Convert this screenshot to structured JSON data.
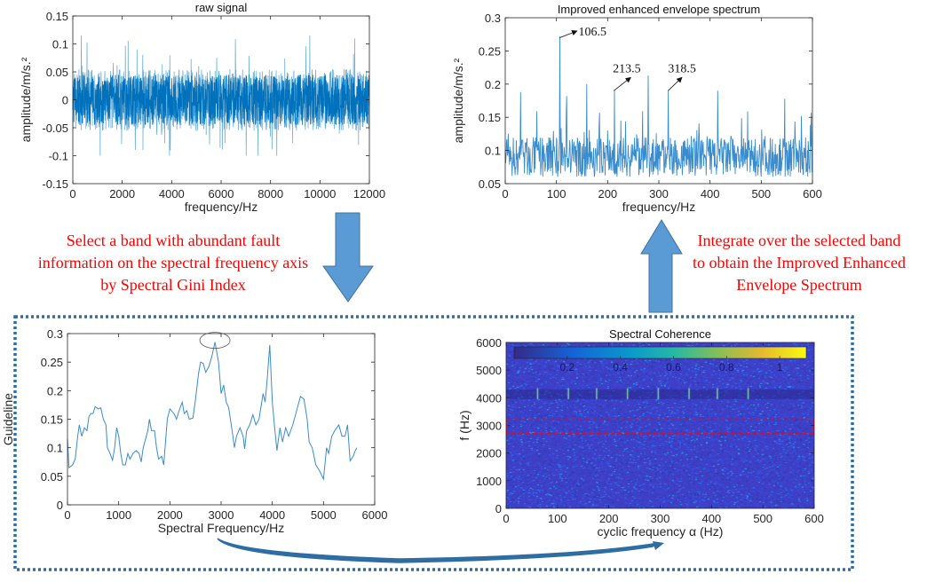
{
  "captions": {
    "left": [
      "Select a band with abundant fault",
      "information on the spectral frequency axis",
      "by Spectral Gini Index"
    ],
    "right": [
      "Integrate over the selected band",
      "to obtain the Improved Enhanced",
      "Envelope Spectrum"
    ]
  },
  "colors": {
    "arrow": "#5b9bd5",
    "box": "#2e6da4",
    "caption": "#ff0000",
    "line": "#0072bd",
    "band": "#ff0000"
  },
  "chart_data": [
    {
      "id": "raw",
      "type": "line",
      "title": "raw signal",
      "xlabel": "frequency/Hz",
      "ylabel": "amplitude/m/s.²",
      "xlim": [
        0,
        12000
      ],
      "ylim": [
        -0.15,
        0.15
      ],
      "xticks": [
        "0",
        "2000",
        "4000",
        "6000",
        "8000",
        "10000",
        "12000"
      ],
      "yticks": [
        "-0.15",
        "-0.1",
        "-0.05",
        "0",
        "0.05",
        "0.1",
        "0.15"
      ],
      "description_values": {
        "typical_amplitude": 0.05,
        "max_amplitude": 0.115,
        "min_amplitude": -0.102
      }
    },
    {
      "id": "env",
      "type": "line",
      "title": "Improved enhanced envelope spectrum",
      "xlabel": "frequency/Hz",
      "ylabel": "amplitude/m/s.²",
      "xlim": [
        0,
        600
      ],
      "ylim": [
        0.05,
        0.3
      ],
      "xticks": [
        "0",
        "100",
        "200",
        "300",
        "400",
        "500",
        "600"
      ],
      "yticks": [
        "0.05",
        "0.1",
        "0.15",
        "0.2",
        "0.25",
        "0.3"
      ],
      "peaks": [
        [
          30,
          0.188
        ],
        [
          106.5,
          0.272
        ],
        [
          120,
          0.182
        ],
        [
          159,
          0.2
        ],
        [
          213.5,
          0.19
        ],
        [
          279,
          0.213
        ],
        [
          318.5,
          0.19
        ],
        [
          415,
          0.19
        ],
        [
          546,
          0.178
        ]
      ],
      "annotations": [
        {
          "x": 106.5,
          "y": 0.272,
          "label": "106.5"
        },
        {
          "x": 213.5,
          "y": 0.19,
          "label": "213.5"
        },
        {
          "x": 318.5,
          "y": 0.19,
          "label": "318.5"
        }
      ]
    },
    {
      "id": "gini",
      "type": "line",
      "title": "",
      "xlabel": "Spectral Frequency/Hz",
      "ylabel": "Guideline",
      "xlim": [
        0,
        6000
      ],
      "ylim": [
        0,
        0.3
      ],
      "xticks": [
        "0",
        "1000",
        "2000",
        "3000",
        "4000",
        "5000",
        "6000"
      ],
      "yticks": [
        "0",
        "0.05",
        "0.1",
        "0.15",
        "0.2",
        "0.25",
        "0.3"
      ],
      "highlight": {
        "x": 2880,
        "y": 0.285
      },
      "points": [
        [
          0,
          0.115
        ],
        [
          30,
          0.065
        ],
        [
          100,
          0.07
        ],
        [
          150,
          0.08
        ],
        [
          200,
          0.12
        ],
        [
          230,
          0.14
        ],
        [
          280,
          0.12
        ],
        [
          330,
          0.135
        ],
        [
          380,
          0.13
        ],
        [
          420,
          0.155
        ],
        [
          460,
          0.16
        ],
        [
          500,
          0.16
        ],
        [
          540,
          0.172
        ],
        [
          600,
          0.168
        ],
        [
          650,
          0.17
        ],
        [
          700,
          0.15
        ],
        [
          750,
          0.14
        ],
        [
          780,
          0.1
        ],
        [
          830,
          0.09
        ],
        [
          880,
          0.078
        ],
        [
          920,
          0.1
        ],
        [
          960,
          0.135
        ],
        [
          1000,
          0.12
        ],
        [
          1040,
          0.09
        ],
        [
          1080,
          0.07
        ],
        [
          1130,
          0.07
        ],
        [
          1180,
          0.09
        ],
        [
          1220,
          0.08
        ],
        [
          1280,
          0.09
        ],
        [
          1340,
          0.095
        ],
        [
          1400,
          0.09
        ],
        [
          1440,
          0.075
        ],
        [
          1480,
          0.1
        ],
        [
          1540,
          0.12
        ],
        [
          1570,
          0.13
        ],
        [
          1600,
          0.15
        ],
        [
          1640,
          0.13
        ],
        [
          1700,
          0.13
        ],
        [
          1740,
          0.1
        ],
        [
          1780,
          0.08
        ],
        [
          1840,
          0.085
        ],
        [
          1880,
          0.07
        ],
        [
          1950,
          0.15
        ],
        [
          2000,
          0.168
        ],
        [
          2080,
          0.16
        ],
        [
          2130,
          0.15
        ],
        [
          2180,
          0.165
        ],
        [
          2240,
          0.18
        ],
        [
          2280,
          0.16
        ],
        [
          2330,
          0.165
        ],
        [
          2380,
          0.15
        ],
        [
          2450,
          0.152
        ],
        [
          2500,
          0.185
        ],
        [
          2560,
          0.23
        ],
        [
          2600,
          0.25
        ],
        [
          2650,
          0.248
        ],
        [
          2700,
          0.232
        ],
        [
          2760,
          0.242
        ],
        [
          2820,
          0.26
        ],
        [
          2880,
          0.285
        ],
        [
          2950,
          0.25
        ],
        [
          3000,
          0.195
        ],
        [
          3050,
          0.21
        ],
        [
          3100,
          0.18
        ],
        [
          3150,
          0.17
        ],
        [
          3230,
          0.12
        ],
        [
          3260,
          0.1
        ],
        [
          3300,
          0.12
        ],
        [
          3370,
          0.135
        ],
        [
          3430,
          0.12
        ],
        [
          3460,
          0.098
        ],
        [
          3500,
          0.13
        ],
        [
          3560,
          0.14
        ],
        [
          3620,
          0.158
        ],
        [
          3680,
          0.14
        ],
        [
          3740,
          0.15
        ],
        [
          3820,
          0.195
        ],
        [
          3860,
          0.18
        ],
        [
          3900,
          0.22
        ],
        [
          3950,
          0.28
        ],
        [
          4000,
          0.18
        ],
        [
          4040,
          0.14
        ],
        [
          4090,
          0.095
        ],
        [
          4150,
          0.135
        ],
        [
          4200,
          0.11
        ],
        [
          4260,
          0.135
        ],
        [
          4320,
          0.12
        ],
        [
          4400,
          0.14
        ],
        [
          4460,
          0.16
        ],
        [
          4550,
          0.19
        ],
        [
          4620,
          0.185
        ],
        [
          4680,
          0.15
        ],
        [
          4720,
          0.11
        ],
        [
          4780,
          0.1
        ],
        [
          4850,
          0.07
        ],
        [
          4920,
          0.06
        ],
        [
          5000,
          0.045
        ],
        [
          5060,
          0.1
        ],
        [
          5100,
          0.09
        ],
        [
          5160,
          0.12
        ],
        [
          5220,
          0.13
        ],
        [
          5300,
          0.14
        ],
        [
          5360,
          0.12
        ],
        [
          5420,
          0.12
        ],
        [
          5470,
          0.14
        ],
        [
          5520,
          0.077
        ],
        [
          5580,
          0.085
        ],
        [
          5620,
          0.095
        ],
        [
          5650,
          0.1
        ]
      ]
    },
    {
      "id": "sc",
      "type": "heatmap",
      "title": "Spectral Coherence",
      "xlabel": "cyclic frequency α (Hz)",
      "ylabel": "f (Hz)",
      "xlim": [
        0,
        600
      ],
      "ylim": [
        0,
        6000
      ],
      "xticks": [
        "0",
        "100",
        "200",
        "300",
        "400",
        "500",
        "600"
      ],
      "yticks": [
        "0",
        "1000",
        "2000",
        "3000",
        "4000",
        "5000",
        "6000"
      ],
      "colorbar": {
        "ticks": [
          "0.2",
          "0.4",
          "0.6",
          "0.8",
          "1"
        ],
        "range": [
          0,
          1.1
        ],
        "colormap": "parula",
        "placement": "top-inside"
      },
      "selected_band": [
        2700,
        3200
      ],
      "bright_band": [
        3950,
        4300
      ],
      "harmonic_lines": [
        60,
        120,
        175,
        235,
        295,
        355,
        410,
        470
      ]
    }
  ]
}
